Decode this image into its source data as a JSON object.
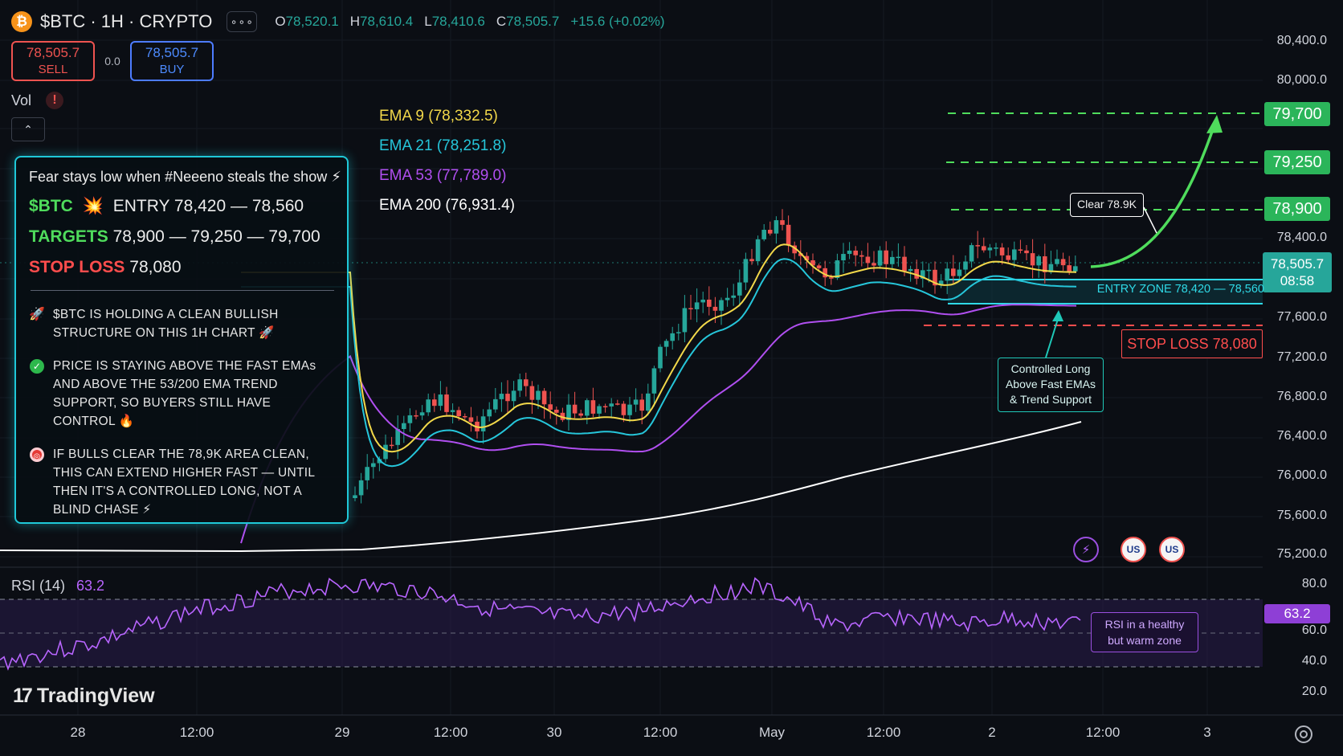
{
  "header": {
    "logo_glyph": "₿",
    "symbol": "$BTC · 1H · CRYPTO",
    "more_glyph": "∘∘∘",
    "ohlc": {
      "o_label": "O",
      "o": "78,520.1",
      "h_label": "H",
      "h": "78,610.4",
      "l_label": "L",
      "l": "78,410.6",
      "c_label": "C",
      "c": "78,505.7",
      "change": "+15.6 (+0.02%)"
    }
  },
  "trade": {
    "sell_price": "78,505.7",
    "sell_label": "SELL",
    "spread": "0.0",
    "buy_price": "78,505.7",
    "buy_label": "BUY"
  },
  "volume": {
    "label": "Vol",
    "alert": "!",
    "collapse_glyph": "⌃"
  },
  "ema_legend": [
    {
      "label": "EMA 9  (78,332.5)",
      "color": "#f2d84a"
    },
    {
      "label": "EMA 21  (78,251.8)",
      "color": "#26c6da"
    },
    {
      "label": "EMA 53  (77,789.0)",
      "color": "#b04ff0"
    },
    {
      "label": "EMA 200  (76,931.4)",
      "color": "#ffffff"
    }
  ],
  "panel": {
    "title": "Fear stays low when #Neeeno steals the show ⚡",
    "ticker": "$BTC",
    "ticker_icon": "💥",
    "entry": "ENTRY 78,420 — 78,560",
    "targets_label": "TARGETS",
    "targets": "78,900 — 79,250 — 79,700",
    "stop_label": "STOP LOSS",
    "stop": "78,080",
    "bullets": [
      {
        "icon": "🚀",
        "text": "$BTC IS HOLDING A CLEAN BULLISH STRUCTURE ON THIS 1H CHART 🚀"
      },
      {
        "icon": "✓",
        "text": "PRICE IS STAYING ABOVE THE FAST EMAs AND ABOVE THE 53/200 EMA TREND SUPPORT, SO BUYERS STILL HAVE CONTROL 🔥"
      },
      {
        "icon": "◎",
        "text": "IF BULLS CLEAR THE 78,9K AREA CLEAN, THIS CAN EXTEND HIGHER FAST — UNTIL THEN IT'S A CONTROLLED LONG, NOT A BLIND CHASE ⚡"
      }
    ]
  },
  "price_axis": [
    "80,400.0",
    "80,000.0",
    "78,400.0",
    "77,600.0",
    "77,200.0",
    "76,800.0",
    "76,400.0",
    "76,000.0",
    "75,600.0",
    "75,200.0"
  ],
  "rsi_axis": [
    "80.0",
    "60.0",
    "40.0",
    "20.0"
  ],
  "time_axis": [
    "28",
    "12:00",
    "29",
    "12:00",
    "30",
    "12:00",
    "May",
    "12:00",
    "2",
    "12:00",
    "3"
  ],
  "price_tags": {
    "t3": "79,700",
    "t2": "79,250",
    "t1": "78,900",
    "current_price": "78,505.7",
    "countdown": "08:58",
    "rsi": "63.2"
  },
  "annotations": {
    "clear": "Clear 78.9K",
    "entry_zone": "ENTRY ZONE 78,420 — 78,560",
    "stop_loss": "STOP LOSS 78,080",
    "controlled_1": "Controlled Long",
    "controlled_2": "Above Fast EMAs",
    "controlled_3": "& Trend Support",
    "rsi_1": "RSI in a healthy",
    "rsi_2": "but warm zone"
  },
  "rsi": {
    "label": "RSI (14)",
    "value": "63.2"
  },
  "branding": {
    "logo_mark": "17",
    "name": "TradingView"
  },
  "icons": {
    "bolt": "⚡",
    "flag": "US"
  },
  "colors": {
    "up": "#26a69a",
    "down": "#ef5350",
    "ema9": "#f2d84a",
    "ema21": "#26c6da",
    "ema53": "#b04ff0",
    "ema200": "#ffffff",
    "target": "#4fdc5c",
    "stop": "#ff4d4d",
    "rsi": "#9b4fe0"
  },
  "chart_data": {
    "type": "candlestick",
    "timeframe": "1H",
    "ylim": [
      74900,
      80600
    ],
    "ema_lines": [
      "EMA 9",
      "EMA 21",
      "EMA 53",
      "EMA 200"
    ],
    "target_levels": [
      78900,
      79250,
      79700
    ],
    "entry_zone": [
      78420,
      78560
    ],
    "stop_loss": 78080,
    "last_close": 78505.7,
    "rsi_last": 63.2,
    "rsi_bands": [
      70,
      50,
      30
    ]
  }
}
